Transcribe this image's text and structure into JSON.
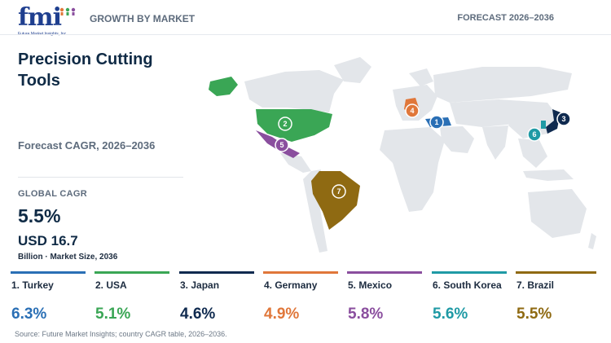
{
  "header": {
    "logo_text": "fmi",
    "logo_sub": "Future Market Insights, Inc.",
    "section_label": "GROWTH BY MARKET",
    "forecast_label": "FORECAST 2026–2036"
  },
  "panel": {
    "title": "Precision Cutting Tools",
    "subtitle": "Forecast CAGR, 2026–2036",
    "global_cagr_label": "GLOBAL CAGR",
    "global_cagr_value": "5.5%",
    "market_size_value": "USD 16.7",
    "market_size_label": "Billion · Market Size, 2036"
  },
  "chart_data": {
    "type": "choropleth-map",
    "title": "Precision Cutting Tools",
    "subtitle": "Forecast CAGR, 2026–2036",
    "metric": "CAGR",
    "series": [
      {
        "rank": "1",
        "country": "Turkey",
        "cagr": 6.3,
        "label": "6.3%",
        "color": "#2a6fb5"
      },
      {
        "rank": "2",
        "country": "USA",
        "cagr": 5.1,
        "label": "5.1%",
        "color": "#3aa655"
      },
      {
        "rank": "3",
        "country": "Japan",
        "cagr": 4.6,
        "label": "4.6%",
        "color": "#0f2a4f"
      },
      {
        "rank": "4",
        "country": "Germany",
        "cagr": 4.9,
        "label": "4.9%",
        "color": "#e0773a"
      },
      {
        "rank": "5",
        "country": "Mexico",
        "cagr": 5.8,
        "label": "5.8%",
        "color": "#8a4e9e"
      },
      {
        "rank": "6",
        "country": "South Korea",
        "cagr": 5.6,
        "label": "5.6%",
        "color": "#1f9aa5"
      },
      {
        "rank": "7",
        "country": "Brazil",
        "cagr": 5.5,
        "label": "5.5%",
        "color": "#8f6a12"
      }
    ]
  },
  "cards": [
    {
      "name": "1. Turkey",
      "value": "6.3%"
    },
    {
      "name": "2. USA",
      "value": "5.1%"
    },
    {
      "name": "3. Japan",
      "value": "4.6%"
    },
    {
      "name": "4. Germany",
      "value": "4.9%"
    },
    {
      "name": "5. Mexico",
      "value": "5.8%"
    },
    {
      "name": "6. South Korea",
      "value": "5.6%"
    },
    {
      "name": "7. Brazil",
      "value": "5.5%"
    }
  ],
  "colors": {
    "land": "#e3e6ea",
    "turkey": "#2a6fb5",
    "usa": "#3aa655",
    "japan": "#0f2a4f",
    "germany": "#e0773a",
    "mexico": "#8a4e9e",
    "south_korea": "#1f9aa5",
    "brazil": "#8f6a12"
  },
  "source": "Source: Future Market Insights; country CAGR table, 2026–2036."
}
